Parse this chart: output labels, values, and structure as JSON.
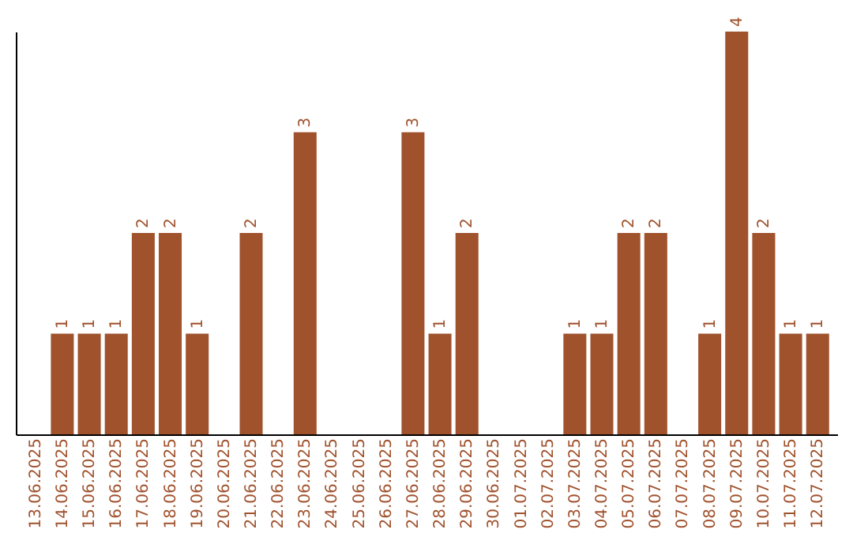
{
  "chart_data": {
    "type": "bar",
    "categories": [
      "13.06.2025",
      "14.06.2025",
      "15.06.2025",
      "16.06.2025",
      "17.06.2025",
      "18.06.2025",
      "19.06.2025",
      "20.06.2025",
      "21.06.2025",
      "22.06.2025",
      "23.06.2025",
      "24.06.2025",
      "25.06.2025",
      "26.06.2025",
      "27.06.2025",
      "28.06.2025",
      "29.06.2025",
      "30.06.2025",
      "01.07.2025",
      "02.07.2025",
      "03.07.2025",
      "04.07.2025",
      "05.07.2025",
      "06.07.2025",
      "07.07.2025",
      "08.07.2025",
      "09.07.2025",
      "10.07.2025",
      "11.07.2025",
      "12.07.2025"
    ],
    "values": [
      null,
      1,
      1,
      1,
      2,
      2,
      1,
      null,
      2,
      null,
      3,
      null,
      null,
      null,
      3,
      1,
      2,
      null,
      null,
      null,
      1,
      1,
      2,
      2,
      null,
      1,
      4,
      2,
      1,
      1
    ],
    "color": "#a0522d",
    "data_labels": true,
    "tick_labels": "x"
  }
}
